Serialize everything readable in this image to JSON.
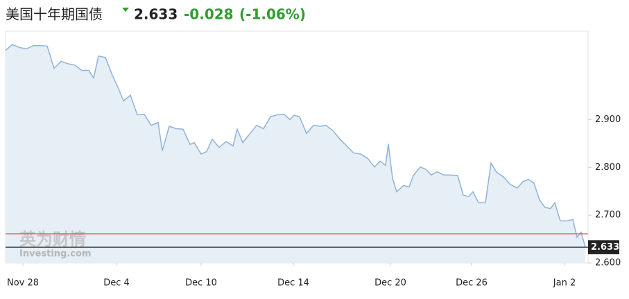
{
  "chart_data": {
    "type": "area",
    "title": "美国十年期国债",
    "price": "2.633",
    "change": "-0.028",
    "change_pct": "(-1.06%)",
    "watermark": [
      "英为财情",
      "Investing.com"
    ],
    "line_color": "#8fb3d9",
    "fill_color": "#e6eef6",
    "change_color": "#2e9e2e",
    "reference_line": {
      "value": 2.661,
      "color": "#d9534f"
    },
    "current": {
      "value": 2.633,
      "label": "2.633",
      "color": "#222222"
    },
    "x": [
      0,
      1,
      2,
      3,
      4,
      5,
      6,
      7,
      8,
      9,
      10,
      11,
      12,
      12.7,
      13.4,
      14.4,
      15.4,
      16.4,
      17,
      18,
      19,
      20,
      21,
      22,
      22.6,
      23.6,
      24.6,
      25.6,
      26.6,
      27.2,
      28.2,
      29,
      29.8,
      30.8,
      31.8,
      32.8,
      33.4,
      34.2,
      35.2,
      36.2,
      37.2,
      38.2,
      39.2,
      40.2,
      41,
      41.6,
      42.4,
      43.4,
      44.4,
      45.4,
      46.2,
      47.2,
      48.2,
      49.2,
      50.2,
      51.2,
      52.2,
      53.2,
      54,
      54.8,
      55.2,
      55.8,
      56.4,
      57.4,
      58.2,
      58.8,
      59.8,
      60.6,
      61.4,
      62.2,
      63.2,
      64.2,
      65.2,
      66,
      66.8,
      67.4,
      68.2,
      69.2,
      70,
      70.8,
      71.8,
      72.8,
      73.8,
      74.6,
      75.4,
      76.2,
      77,
      77.8,
      78.6,
      79.2,
      80,
      81,
      81.8,
      82.4,
      83,
      83.6
    ],
    "values": [
      3.045,
      3.057,
      3.051,
      3.048,
      3.055,
      3.055,
      3.054,
      3.007,
      3.022,
      3.017,
      3.014,
      3.003,
      3.003,
      2.987,
      3.033,
      3.03,
      2.993,
      2.961,
      2.939,
      2.951,
      2.91,
      2.911,
      2.888,
      2.894,
      2.835,
      2.886,
      2.881,
      2.88,
      2.848,
      2.852,
      2.828,
      2.833,
      2.859,
      2.842,
      2.854,
      2.845,
      2.88,
      2.852,
      2.87,
      2.888,
      2.881,
      2.906,
      2.91,
      2.911,
      2.9,
      2.909,
      2.906,
      2.871,
      2.888,
      2.886,
      2.888,
      2.877,
      2.859,
      2.845,
      2.83,
      2.828,
      2.819,
      2.801,
      2.813,
      2.804,
      2.849,
      2.777,
      2.749,
      2.762,
      2.759,
      2.783,
      2.801,
      2.796,
      2.784,
      2.791,
      2.784,
      2.784,
      2.783,
      2.742,
      2.739,
      2.749,
      2.726,
      2.726,
      2.809,
      2.79,
      2.78,
      2.764,
      2.757,
      2.77,
      2.775,
      2.767,
      2.732,
      2.716,
      2.714,
      2.726,
      2.688,
      2.688,
      2.691,
      2.654,
      2.664,
      2.633
    ],
    "xlim": [
      0,
      84
    ],
    "xticks": [
      {
        "value": 2.5,
        "label": "Nov 28"
      },
      {
        "value": 16,
        "label": "Dec 4"
      },
      {
        "value": 28.2,
        "label": "Dec 10"
      },
      {
        "value": 41.5,
        "label": "Dec 14"
      },
      {
        "value": 55.5,
        "label": "Dec 20"
      },
      {
        "value": 67.2,
        "label": "Dec 26"
      },
      {
        "value": 80.6,
        "label": "Jan 2"
      }
    ],
    "ylim": [
      2.6,
      3.085
    ],
    "yticks": [
      {
        "value": 2.6,
        "label": "2.600"
      },
      {
        "value": 2.7,
        "label": "2.700"
      },
      {
        "value": 2.8,
        "label": "2.800"
      },
      {
        "value": 2.9,
        "label": "2.900"
      }
    ]
  }
}
